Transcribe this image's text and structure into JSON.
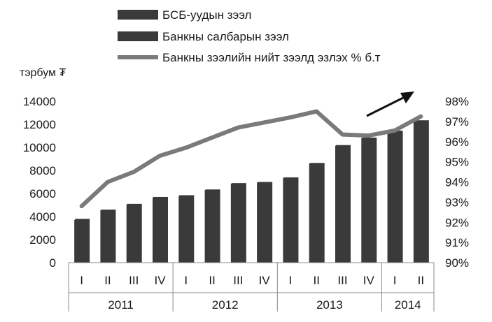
{
  "chart_data": {
    "type": "bar",
    "title": "",
    "ylabel_left": "тэрбум ₮",
    "ylim_left": [
      0,
      14000
    ],
    "yticks_left": [
      "0",
      "2000",
      "4000",
      "6000",
      "8000",
      "10000",
      "12000",
      "14000"
    ],
    "ylim_right": [
      90,
      98
    ],
    "yticks_right": [
      "90%",
      "91%",
      "92%",
      "93%",
      "94%",
      "95%",
      "96%",
      "97%",
      "98%"
    ],
    "categories": [
      "I",
      "II",
      "III",
      "IV",
      "I",
      "II",
      "III",
      "IV",
      "I",
      "II",
      "III",
      "IV",
      "I",
      "II"
    ],
    "years": [
      {
        "label": "2011",
        "span": 4
      },
      {
        "label": "2012",
        "span": 4
      },
      {
        "label": "2013",
        "span": 4
      },
      {
        "label": "2014",
        "span": 2
      }
    ],
    "series": [
      {
        "name": "БСБ-уудын зээл",
        "type": "bar",
        "axis": "left",
        "color": "#3a3a3a",
        "values": [
          3700,
          4550,
          5050,
          5650,
          5800,
          6300,
          6850,
          6950,
          7350,
          8600,
          10150,
          10800,
          11400,
          12300
        ]
      },
      {
        "name": "Банкны салбарын зээл",
        "type": "bar",
        "axis": "left",
        "color": "#3a3a3a",
        "values": [
          3800,
          4600,
          5100,
          5700,
          5850,
          6350,
          6900,
          7000,
          7400,
          8650,
          10200,
          10850,
          11450,
          12350
        ]
      },
      {
        "name": "Банкны зээлийн нийт зээлд эзлэх % б.т",
        "type": "line",
        "axis": "right",
        "color": "#7a7a7a",
        "values": [
          92.8,
          94.0,
          94.5,
          95.3,
          95.7,
          96.2,
          96.7,
          96.95,
          97.2,
          97.5,
          96.35,
          96.3,
          96.55,
          97.25
        ]
      }
    ],
    "legend_position": "top",
    "grid": false
  }
}
